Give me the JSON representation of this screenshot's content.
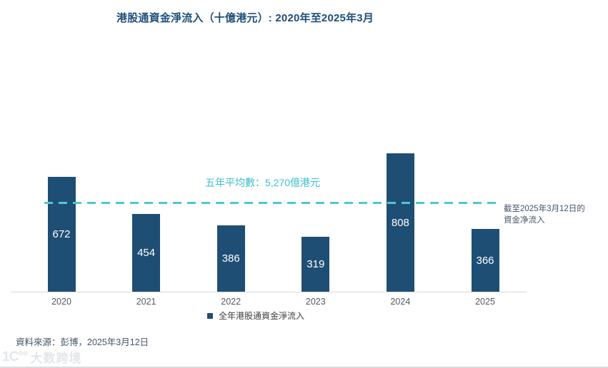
{
  "chart_data": {
    "type": "bar",
    "title": "港股通資金淨流入（十億港元）: 2020年至2025年3月",
    "categories": [
      "2020",
      "2021",
      "2022",
      "2023",
      "2024",
      "2025"
    ],
    "values": [
      672,
      454,
      386,
      319,
      808,
      366
    ],
    "series": [
      {
        "name": "全年港股通資金淨流入",
        "values": [
          672,
          454,
          386,
          319,
          808,
          366
        ]
      }
    ],
    "xlabel": "",
    "ylabel": "",
    "ylim": [
      0,
      1450
    ],
    "grid": false,
    "legend_position": "bottom-center",
    "bar_color": "#1e4e74",
    "average_line": {
      "value": 527,
      "label": "五年平均數：5,270億港元",
      "color": "#4ec7d6",
      "style": "dashed"
    },
    "annotations": [
      {
        "text": "截至2025年3月12日的 資金净流入",
        "target": "2025-bar"
      }
    ]
  },
  "title": "港股通資金淨流入（十億港元）: 2020年至2025年3月",
  "average_label": "五年平均數：5,270億港元",
  "annotation": {
    "line1": "截至2025年3月12日的",
    "line2": "資金净流入"
  },
  "legend": {
    "label": "全年港股通資金淨流入"
  },
  "source": {
    "text": "資料來源：彭博，2025年3月12日"
  },
  "watermark": {
    "logo": "1Ϲ°°",
    "text": "大数跨境"
  },
  "colors": {
    "bar": "#1e4e74",
    "title": "#1f4e79",
    "average_line": "#4ec7d6",
    "average_label": "#3fc0d0",
    "annotation": "#44546a",
    "axis_line": "#d9d9d9",
    "tick_label": "#595959",
    "legend_text": "#404040",
    "source_text": "#44546a",
    "watermark": "#e3e6ea"
  }
}
